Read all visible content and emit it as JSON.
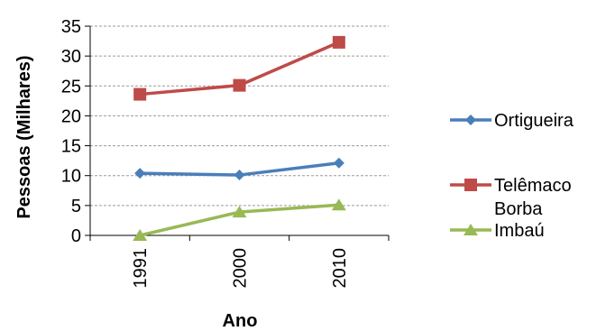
{
  "chart_data": {
    "type": "line",
    "categories": [
      "1991",
      "2000",
      "2010"
    ],
    "xlabel": "Ano",
    "ylabel": "Pessoas (Milhares)",
    "ylim": [
      0,
      35
    ],
    "yticks": [
      0,
      5,
      10,
      15,
      20,
      25,
      30,
      35
    ],
    "grid": "horizontal-dashed",
    "legend_position": "right",
    "series": [
      {
        "name": "Ortigueira",
        "values": [
          10.4,
          10.1,
          12.1
        ],
        "color": "#4a7ebb",
        "marker": "diamond"
      },
      {
        "name": "Telêmaco Borba",
        "name_lines": [
          "Telêmaco",
          "Borba"
        ],
        "values": [
          23.6,
          25.1,
          32.3
        ],
        "color": "#be4b48",
        "marker": "square"
      },
      {
        "name": "Imbaú",
        "values": [
          0.0,
          3.9,
          5.1
        ],
        "color": "#98b954",
        "marker": "triangle"
      }
    ]
  }
}
